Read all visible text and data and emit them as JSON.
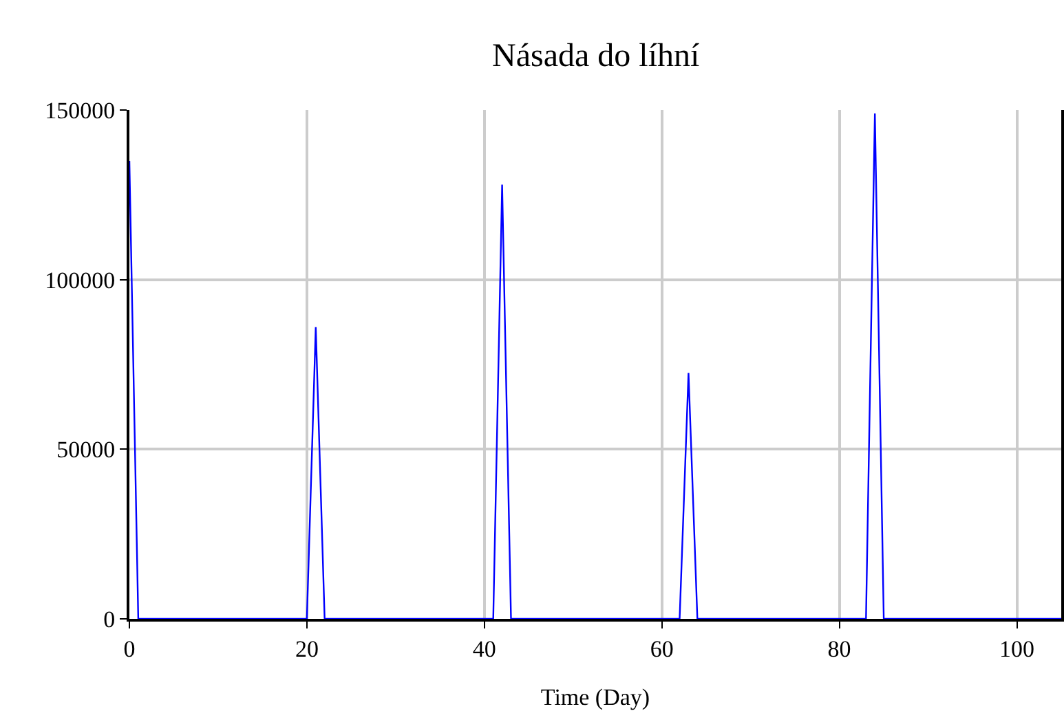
{
  "chart_data": {
    "type": "line",
    "title": "Násada do líhní",
    "xlabel": "Time (Day)",
    "x": [
      0,
      1,
      20,
      21,
      22,
      41,
      42,
      43,
      62,
      63,
      64,
      83,
      84,
      85,
      105
    ],
    "series": [
      {
        "color": "#0000ff",
        "values": [
          135000,
          0,
          0,
          86000,
          0,
          0,
          128000,
          0,
          0,
          72500,
          0,
          0,
          149000,
          0,
          0
        ]
      }
    ],
    "xlim": [
      0,
      105
    ],
    "xticks": [
      0,
      20,
      40,
      60,
      80,
      100
    ],
    "ylim": [
      0,
      150000
    ],
    "yticks": [
      0,
      50000,
      100000,
      150000
    ],
    "grid": true,
    "legend": false,
    "marker": "none",
    "line_style": "solid"
  }
}
